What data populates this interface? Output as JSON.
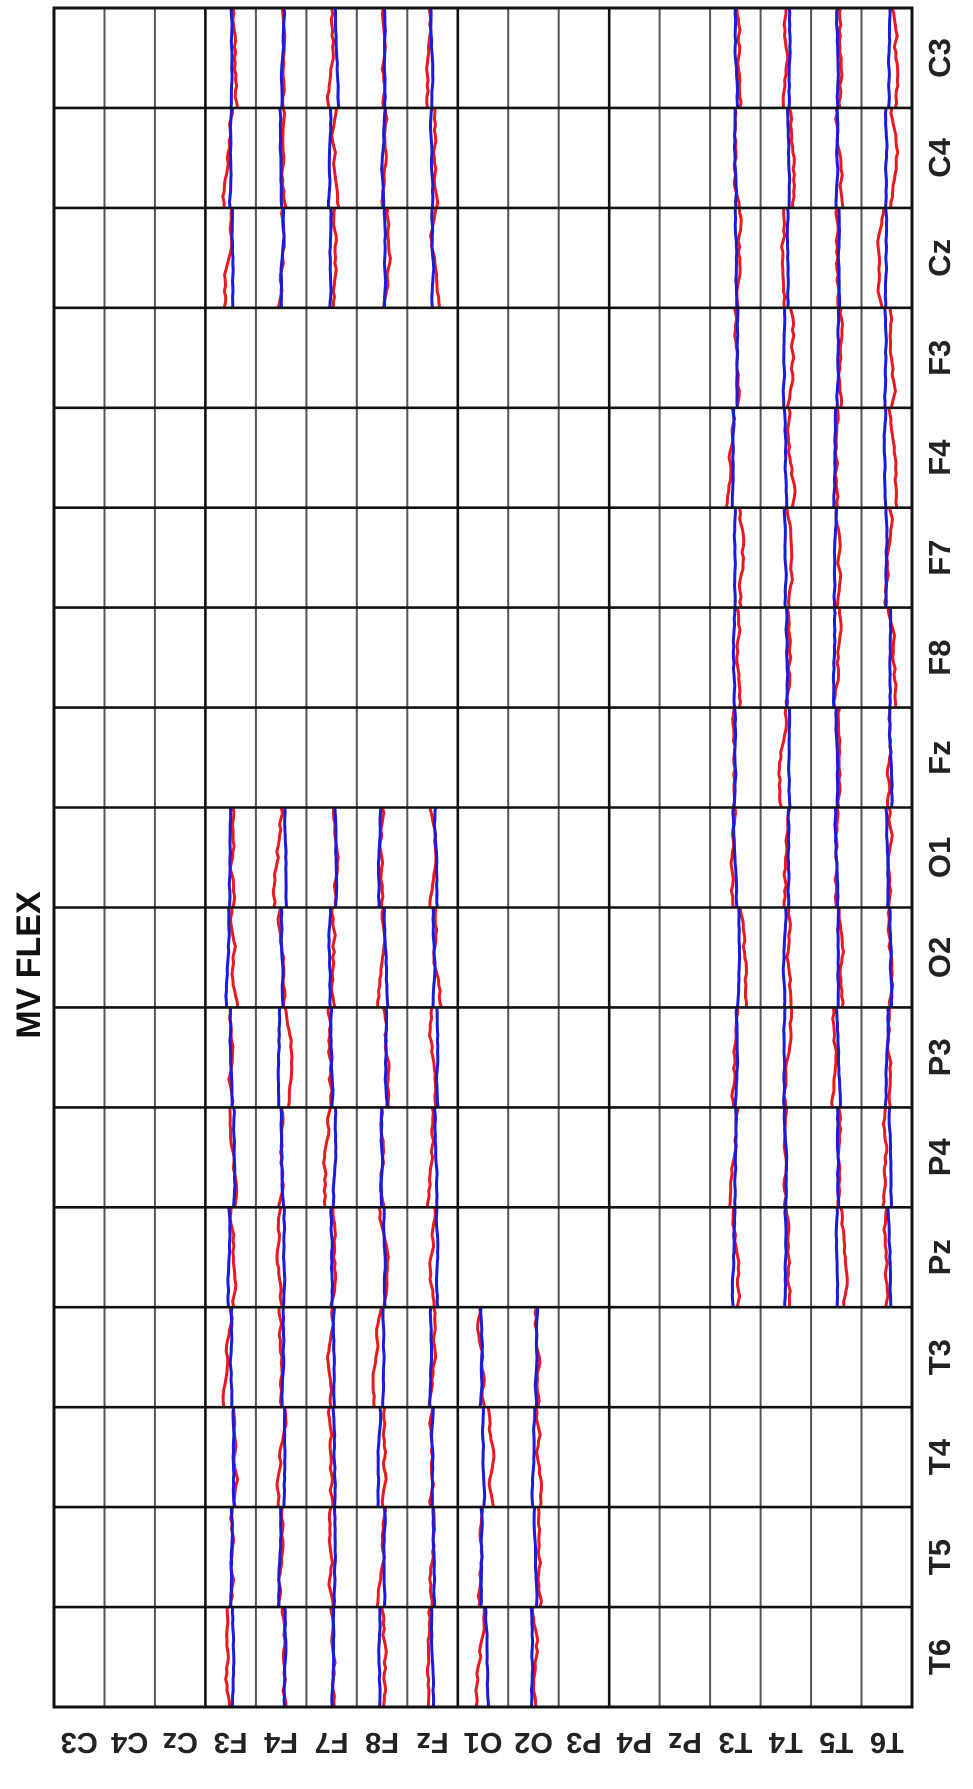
{
  "chart_data": {
    "type": "line",
    "title": "MV FLEX",
    "rotated": "90deg-clockwise-view",
    "axes": {
      "outer_channels_bottom": [
        "C3",
        "C4",
        "Cz",
        "F3",
        "F4",
        "F7",
        "F8",
        "Fz",
        "O1",
        "O2",
        "P3",
        "P4",
        "Pz",
        "T3",
        "T4",
        "T5",
        "T6"
      ],
      "inner_channels_left": [
        "C3",
        "C4",
        "Cz",
        "F3",
        "F4",
        "F7",
        "F8",
        "Fz",
        "O1",
        "O2",
        "P3",
        "P4",
        "Pz",
        "T3",
        "T4",
        "T5",
        "T6"
      ]
    },
    "grid": true,
    "series": [
      {
        "name": "",
        "color": "#e8191f"
      },
      {
        "name": "",
        "color": "#1b1bd9"
      }
    ],
    "filled_cells_inner_rows_by_outer_column": {
      "C3": [
        "F3",
        "F4",
        "F7",
        "F8",
        "Fz",
        "T3",
        "T4",
        "T5",
        "T6"
      ],
      "C4": [
        "F3",
        "F4",
        "F7",
        "F8",
        "Fz",
        "T3",
        "T4",
        "T5",
        "T6"
      ],
      "Cz": [
        "F3",
        "F4",
        "F7",
        "F8",
        "Fz",
        "T3",
        "T4",
        "T5",
        "T6"
      ],
      "F3": [
        "T3",
        "T4",
        "T5",
        "T6"
      ],
      "F4": [
        "T3",
        "T4",
        "T5",
        "T6"
      ],
      "F7": [
        "T3",
        "T4",
        "T5",
        "T6"
      ],
      "F8": [
        "T3",
        "T4",
        "T5",
        "T6"
      ],
      "Fz": [
        "T3",
        "T4",
        "T5",
        "T6"
      ],
      "O1": [
        "F3",
        "F4",
        "F7",
        "F8",
        "Fz",
        "T3",
        "T4",
        "T5",
        "T6"
      ],
      "O2": [
        "F3",
        "F4",
        "F7",
        "F8",
        "Fz",
        "T3",
        "T4",
        "T5",
        "T6"
      ],
      "P3": [
        "F3",
        "F4",
        "F7",
        "F8",
        "Fz",
        "T3",
        "T4",
        "T5",
        "T6"
      ],
      "P4": [
        "F3",
        "F4",
        "F7",
        "F8",
        "Fz",
        "T3",
        "T4",
        "T5",
        "T6"
      ],
      "Pz": [
        "F3",
        "F4",
        "F7",
        "F8",
        "Fz",
        "T3",
        "T4",
        "T5",
        "T6"
      ],
      "T3": [
        "F3",
        "F4",
        "F7",
        "F8",
        "Fz",
        "O1",
        "O2"
      ],
      "T4": [
        "F3",
        "F4",
        "F7",
        "F8",
        "Fz",
        "O1",
        "O2"
      ],
      "T5": [
        "F3",
        "F4",
        "F7",
        "F8",
        "Fz",
        "O1",
        "O2"
      ],
      "T6": [
        "F3",
        "F4",
        "F7",
        "F8",
        "Fz",
        "O1",
        "O2"
      ]
    }
  },
  "colors": {
    "grid_major": "#111111",
    "grid_minor": "#555555",
    "series_red": "#e8191f",
    "series_blue": "#1b1bd9"
  }
}
